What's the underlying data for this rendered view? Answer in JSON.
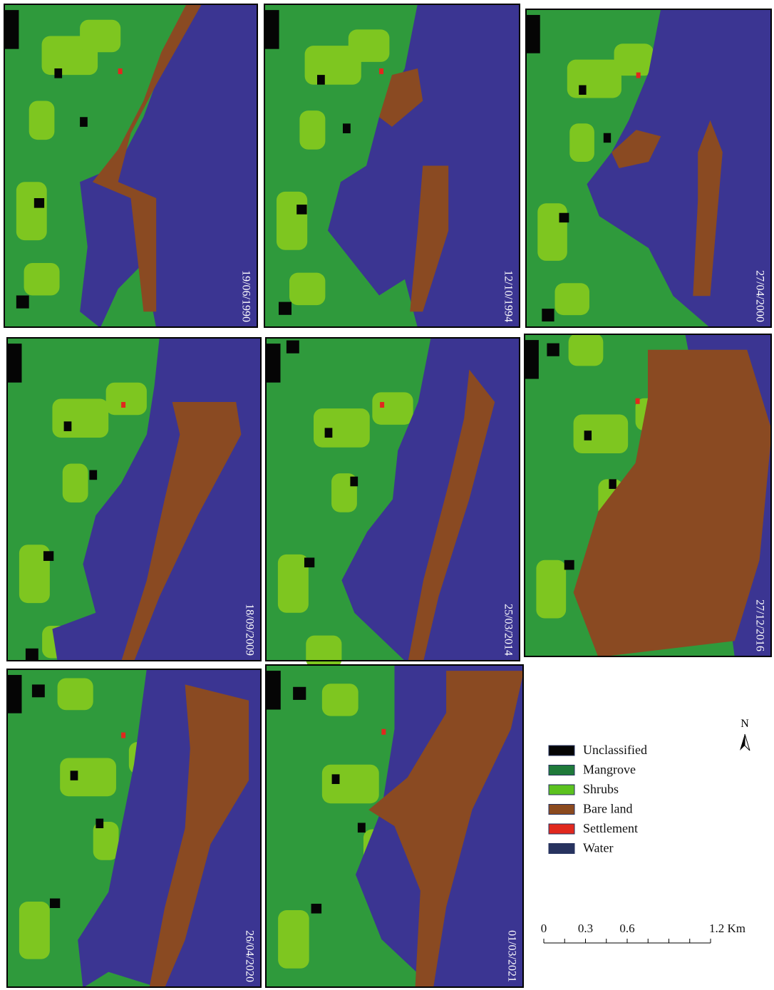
{
  "panels": [
    {
      "date": "19/06/1990"
    },
    {
      "date": "12/10/1994"
    },
    {
      "date": "27/04/2000"
    },
    {
      "date": "18/09/2009"
    },
    {
      "date": "25/03/2014"
    },
    {
      "date": "27/12/2016"
    },
    {
      "date": "26/04/2020"
    },
    {
      "date": "01/03/2021"
    }
  ],
  "legend": {
    "items": [
      {
        "label": "Unclassified",
        "color": "#050505"
      },
      {
        "label": "Mangrove",
        "color": "#1f7a3a"
      },
      {
        "label": "Shrubs",
        "color": "#5cc21f"
      },
      {
        "label": "Bare land",
        "color": "#8b4a1f"
      },
      {
        "label": "Settlement",
        "color": "#e1281e"
      },
      {
        "label": "Water",
        "color": "#27335f"
      }
    ]
  },
  "north": "N",
  "scale": {
    "labels": [
      "0",
      "0.3",
      "0.6",
      "1.2 Km"
    ]
  }
}
